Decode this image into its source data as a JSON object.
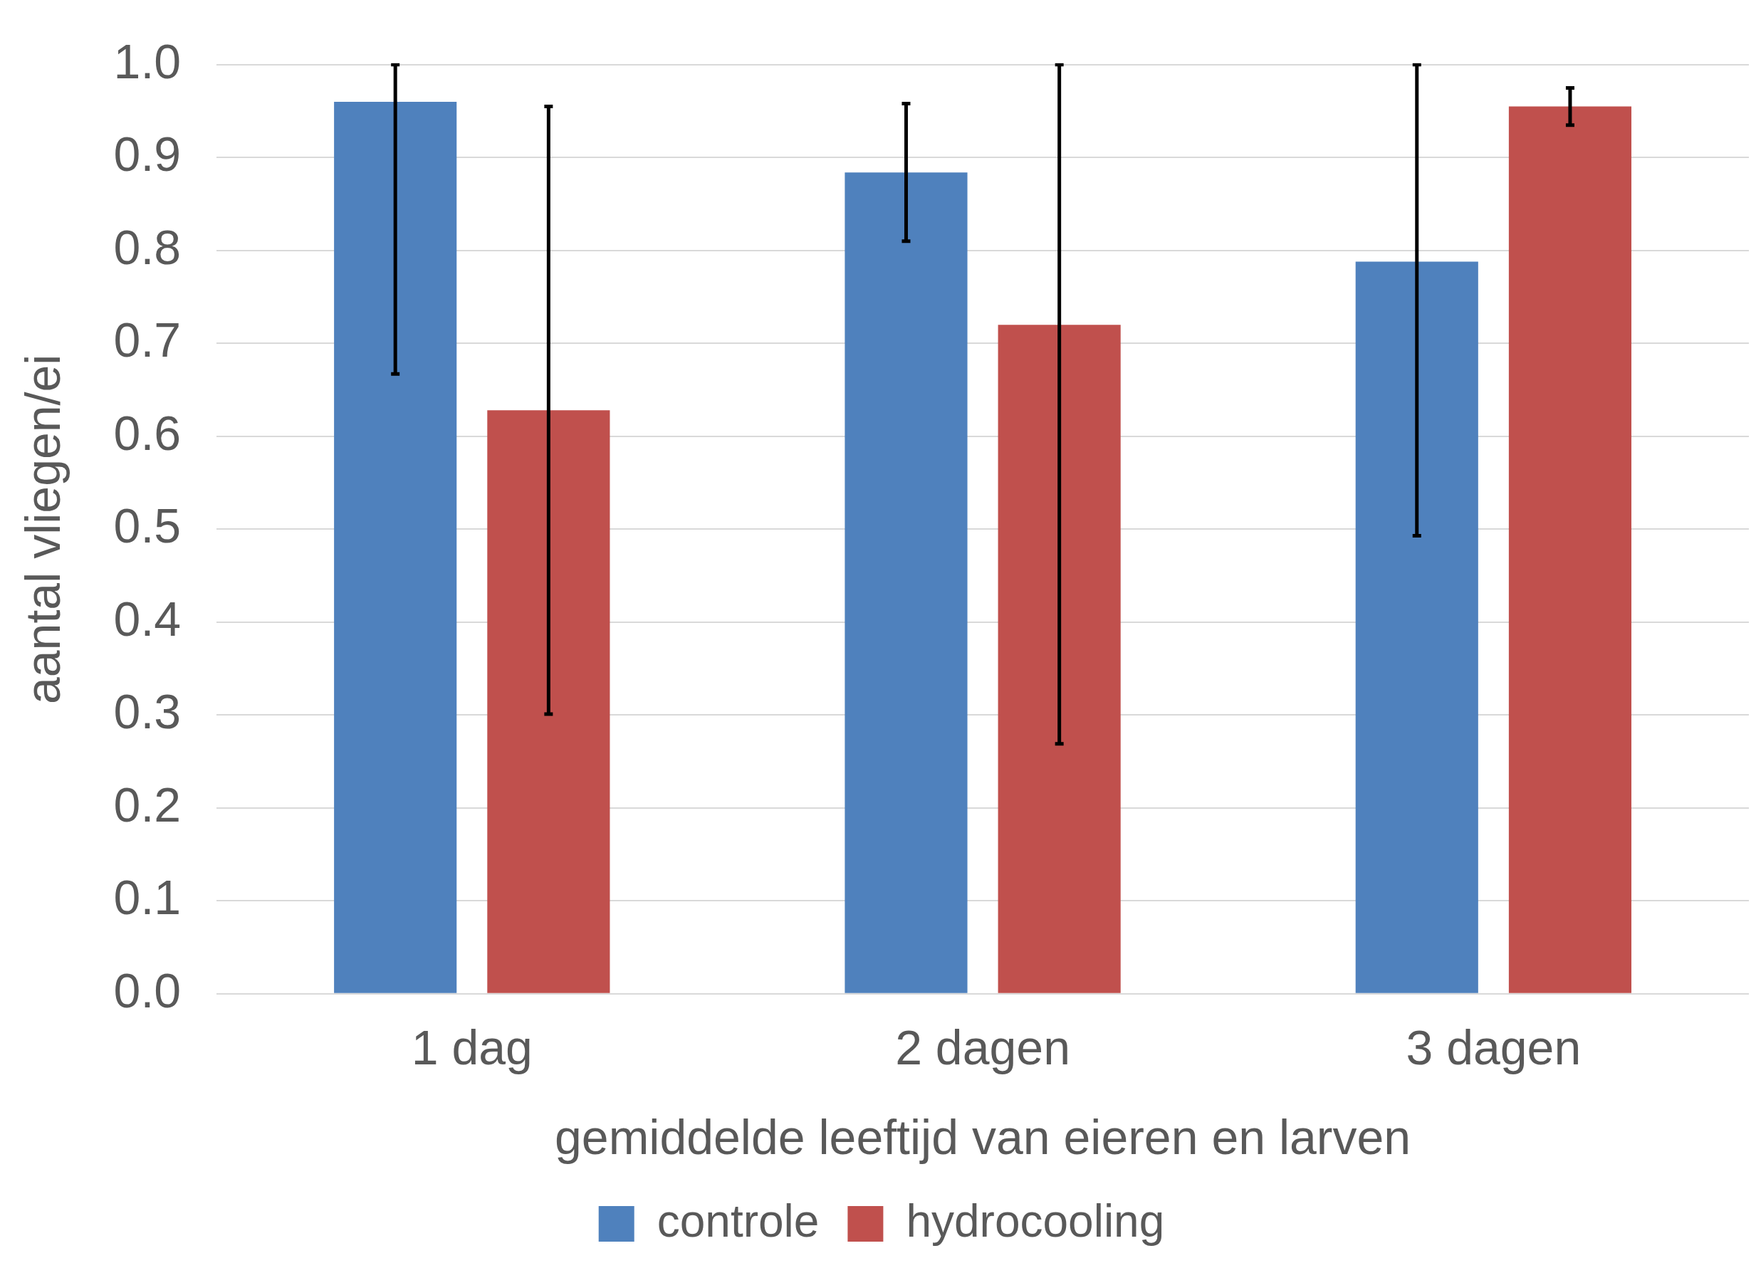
{
  "chart_data": {
    "type": "bar",
    "xlabel": "gemiddelde leeftijd van eieren en larven",
    "ylabel": "aantal vliegen/ei",
    "categories": [
      "1 dag",
      "2 dagen",
      "3 dagen"
    ],
    "series": [
      {
        "name": "controle",
        "color": "#4f81bd",
        "values": [
          0.96,
          0.884,
          0.788
        ],
        "errors": [
          [
            0.667,
            1.0
          ],
          0.074,
          [
            0.493,
            1.0
          ]
        ]
      },
      {
        "name": "hydrocooling",
        "color": "#c0504d",
        "values": [
          0.628,
          0.72,
          0.955
        ],
        "errors": [
          0.327,
          [
            0.269,
            1.0
          ],
          0.02
        ]
      }
    ],
    "ylim": [
      0,
      1
    ],
    "yticks": [
      {
        "value": 0,
        "label": "0.0"
      },
      {
        "value": 0.1,
        "label": "0.1"
      },
      {
        "value": 0.2,
        "label": "0.2"
      },
      {
        "value": 0.3,
        "label": "0.3"
      },
      {
        "value": 0.4,
        "label": "0.4"
      },
      {
        "value": 0.5,
        "label": "0.5"
      },
      {
        "value": 0.6,
        "label": "0.6"
      },
      {
        "value": 0.7,
        "label": "0.7"
      },
      {
        "value": 0.8,
        "label": "0.8"
      },
      {
        "value": 0.9,
        "label": "0.9"
      },
      {
        "value": 1,
        "label": "1.0"
      }
    ],
    "grid": "y",
    "legend": "bottom"
  }
}
